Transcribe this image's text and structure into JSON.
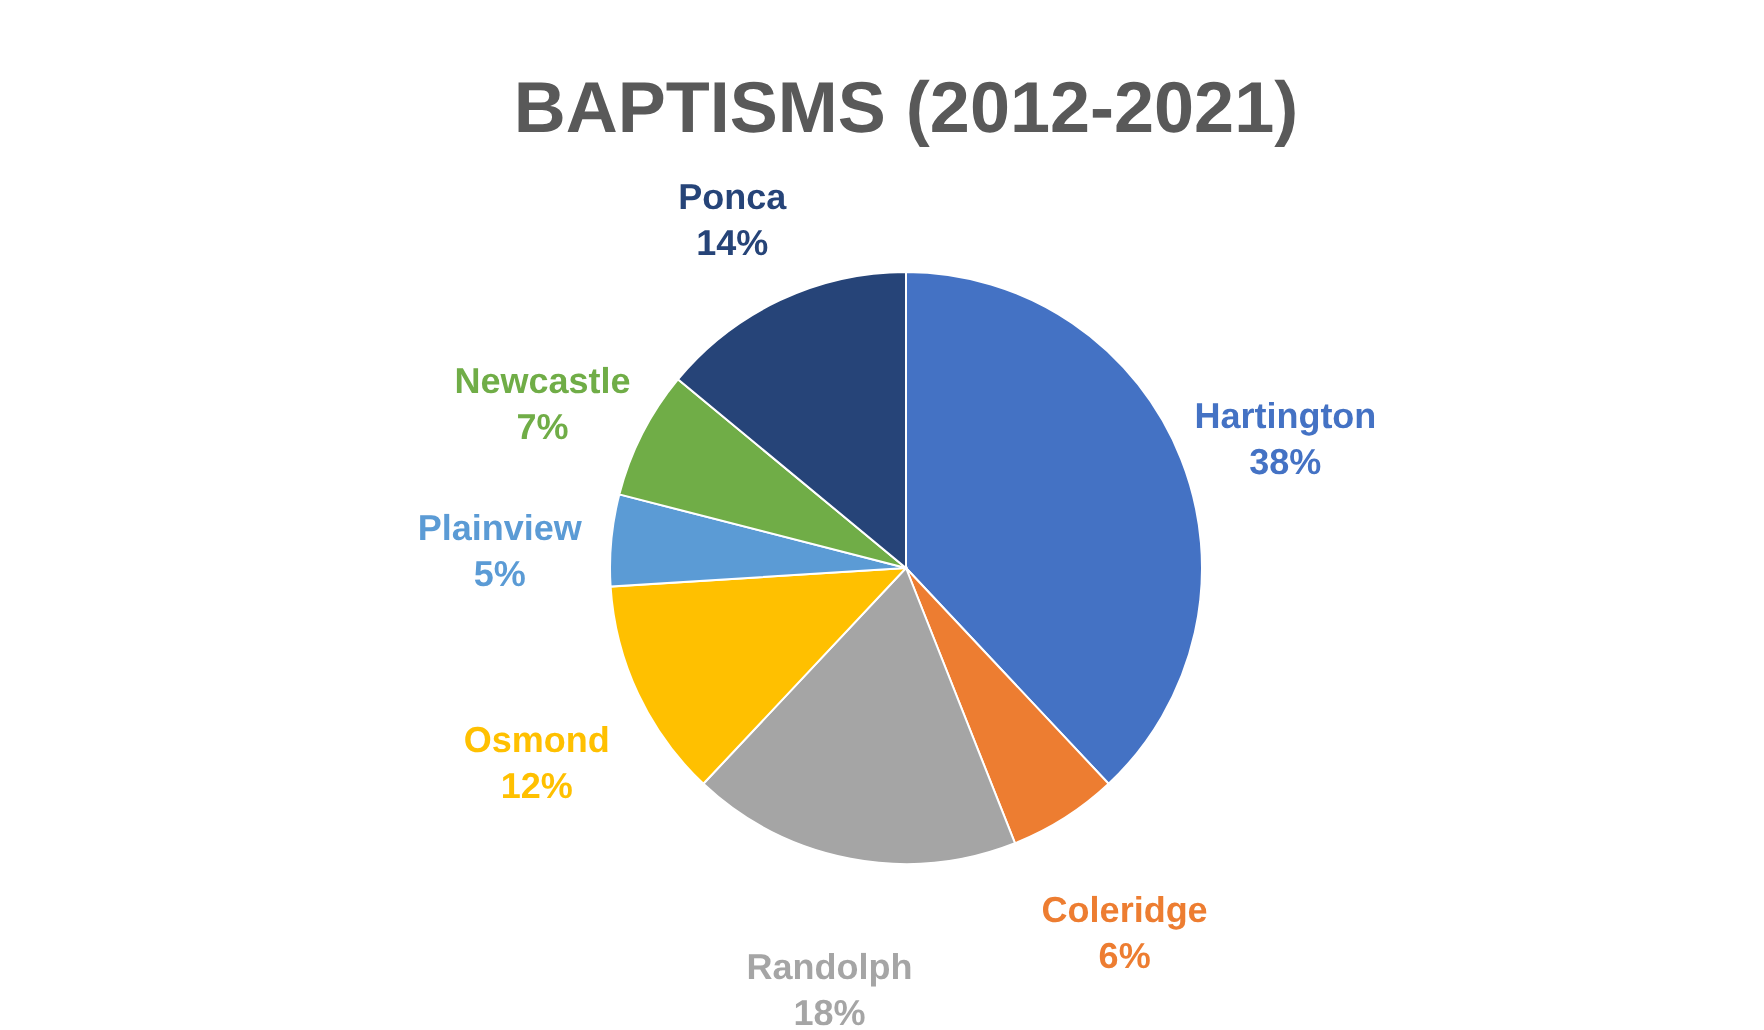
{
  "chart_data": {
    "type": "pie",
    "title": "BAPTISMS (2012-2021)",
    "categories": [
      "Hartington",
      "Coleridge",
      "Randolph",
      "Osmond",
      "Plainview",
      "Newcastle",
      "Ponca"
    ],
    "values": [
      38,
      6,
      18,
      12,
      5,
      7,
      14
    ],
    "colors": [
      "#4472c4",
      "#ed7d31",
      "#a5a5a5",
      "#ffc000",
      "#5b9bd5",
      "#70ad47",
      "#264478"
    ],
    "value_labels": [
      "38%",
      "6%",
      "18%",
      "12%",
      "5%",
      "7%",
      "14%"
    ],
    "legend": false
  }
}
